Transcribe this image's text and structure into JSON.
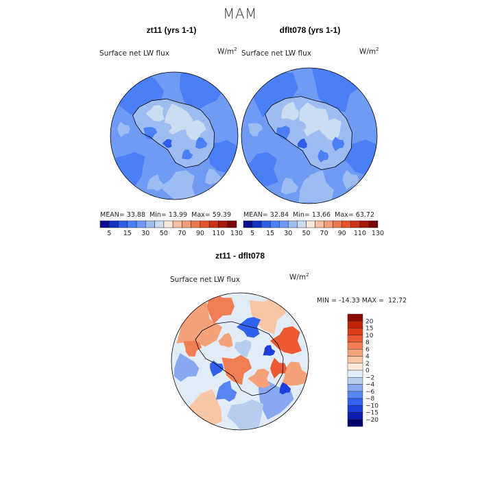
{
  "title": "MAM",
  "variable_label": "Surface net LW flux",
  "units_base": "W/m",
  "units_exp": "2",
  "colors": {
    "abs_scale": [
      "#08108f",
      "#1633c4",
      "#2f5de6",
      "#4a7ff5",
      "#6f9bf5",
      "#9dbcf2",
      "#c9dcf0",
      "#f7e7d6",
      "#f6c0a2",
      "#f39c78",
      "#ee764f",
      "#e4532d",
      "#cc3218",
      "#a8190c",
      "#7a0806"
    ],
    "diff_scale": [
      "#00006e",
      "#0c1fb0",
      "#1b3fd8",
      "#2f62ee",
      "#5786f3",
      "#87a9f2",
      "#b7cdf0",
      "#e2ecf6",
      "#fbe8d8",
      "#f8c5a5",
      "#f5a27a",
      "#f17d52",
      "#eb5a32",
      "#dd3d1a",
      "#c0240a",
      "#8c0a02"
    ]
  },
  "chart_data": [
    {
      "type": "heatmap",
      "projection": "south-polar-stereographic",
      "title": "zt11 (yrs 1-1)",
      "variable": "Surface net LW flux",
      "stats": {
        "mean_label": "MEAN=",
        "mean": "33.88",
        "min_label": "Min=",
        "min": "13.99",
        "max_label": "Max=",
        "max": "59.39"
      },
      "colorbar_ticks": [
        "5",
        "15",
        "30",
        "50",
        "70",
        "90",
        "110",
        "130"
      ]
    },
    {
      "type": "heatmap",
      "projection": "south-polar-stereographic",
      "title": "dflt078 (yrs 1-1)",
      "variable": "Surface net LW flux",
      "stats": {
        "mean_label": "MEAN=",
        "mean": "32.84",
        "min_label": "Min=",
        "min": "13.66",
        "max_label": "Max=",
        "max": "63.72"
      },
      "colorbar_ticks": [
        "5",
        "15",
        "30",
        "50",
        "70",
        "90",
        "110",
        "130"
      ]
    },
    {
      "type": "heatmap",
      "projection": "south-polar-stereographic",
      "title": "zt11 - dflt078",
      "variable": "Surface net LW flux",
      "stats_text": "MIN = -14.33 MAX =  12.72",
      "colorbar_ticks": [
        "20",
        "15",
        "10",
        "8",
        "6",
        "4",
        "2",
        "0",
        "−2",
        "−4",
        "−6",
        "−8",
        "−10",
        "−15",
        "−20"
      ]
    }
  ]
}
